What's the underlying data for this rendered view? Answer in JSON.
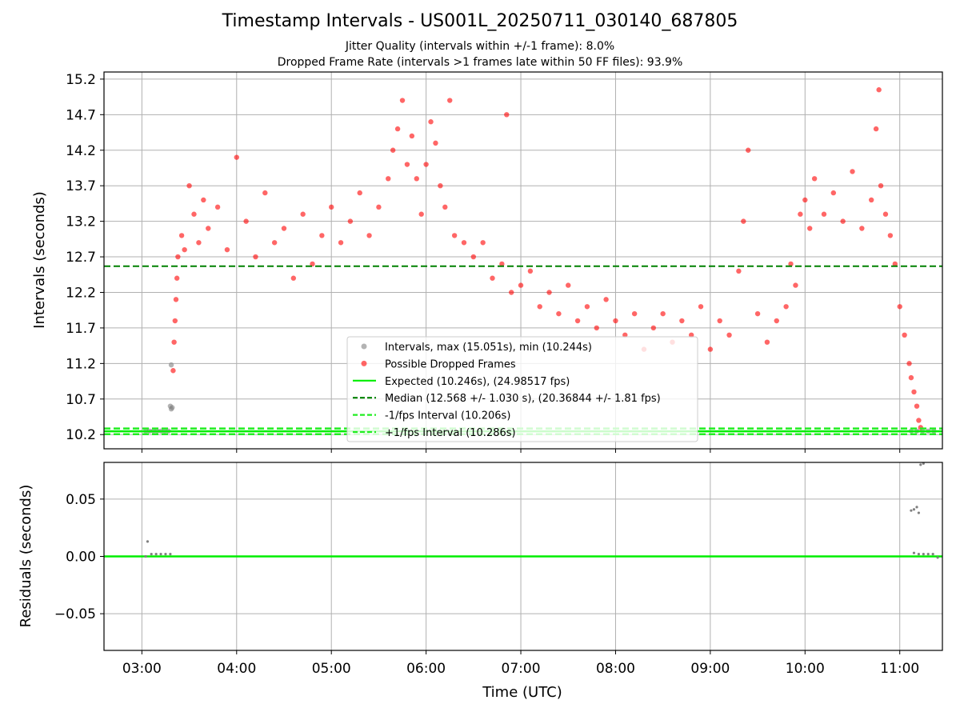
{
  "chart_data": [
    {
      "type": "scatter",
      "title": "Timestamp Intervals - US001L_20250711_030140_687805",
      "subtitle_1": "Jitter Quality (intervals within +/-1 frame): 8.0%",
      "subtitle_2": "Dropped Frame Rate (intervals >1 frames late within 50 FF files): 93.9%",
      "ylabel": "Intervals (seconds)",
      "xlabel": "",
      "xlim_hours": [
        2.6,
        11.45
      ],
      "ylim": [
        10.0,
        15.3
      ],
      "y_ticks": [
        10.2,
        10.7,
        11.2,
        11.7,
        12.2,
        12.7,
        13.2,
        13.7,
        14.2,
        14.7,
        15.2
      ],
      "x_ticks": [
        "03:00",
        "04:00",
        "05:00",
        "06:00",
        "07:00",
        "08:00",
        "09:00",
        "10:00",
        "11:00"
      ],
      "grid": true,
      "legend_location": "lower-center",
      "reference_lines": {
        "expected": 10.246,
        "median": 12.568,
        "minus_fps": 10.206,
        "plus_fps": 10.286
      },
      "series": [
        {
          "name": "Intervals, max (15.051s), min (10.244s)",
          "color": "#808080",
          "points": [
            [
              3.04,
              10.25
            ],
            [
              3.08,
              10.25
            ],
            [
              3.12,
              10.25
            ],
            [
              3.16,
              10.25
            ],
            [
              3.2,
              10.25
            ],
            [
              3.24,
              10.25
            ],
            [
              3.28,
              10.25
            ],
            [
              3.3,
              10.6
            ],
            [
              3.31,
              10.56
            ],
            [
              3.32,
              10.58
            ],
            [
              3.31,
              11.18
            ],
            [
              11.12,
              10.25
            ],
            [
              11.18,
              10.25
            ],
            [
              11.24,
              10.25
            ],
            [
              11.3,
              10.25
            ],
            [
              11.36,
              10.25
            ]
          ]
        },
        {
          "name": "Possible Dropped Frames",
          "color": "#ff0000",
          "points": [
            [
              3.33,
              11.1
            ],
            [
              3.34,
              11.5
            ],
            [
              3.35,
              11.8
            ],
            [
              3.36,
              12.1
            ],
            [
              3.37,
              12.4
            ],
            [
              3.38,
              12.7
            ],
            [
              3.42,
              13.0
            ],
            [
              3.45,
              12.8
            ],
            [
              3.5,
              13.7
            ],
            [
              3.55,
              13.3
            ],
            [
              3.6,
              12.9
            ],
            [
              3.65,
              13.5
            ],
            [
              3.7,
              13.1
            ],
            [
              3.8,
              13.4
            ],
            [
              3.9,
              12.8
            ],
            [
              4.0,
              14.1
            ],
            [
              4.1,
              13.2
            ],
            [
              4.2,
              12.7
            ],
            [
              4.3,
              13.6
            ],
            [
              4.4,
              12.9
            ],
            [
              4.5,
              13.1
            ],
            [
              4.6,
              12.4
            ],
            [
              4.7,
              13.3
            ],
            [
              4.8,
              12.6
            ],
            [
              4.9,
              13.0
            ],
            [
              5.0,
              13.4
            ],
            [
              5.1,
              12.9
            ],
            [
              5.2,
              13.2
            ],
            [
              5.3,
              13.6
            ],
            [
              5.4,
              13.0
            ],
            [
              5.5,
              13.4
            ],
            [
              5.6,
              13.8
            ],
            [
              5.65,
              14.2
            ],
            [
              5.7,
              14.5
            ],
            [
              5.75,
              14.9
            ],
            [
              5.8,
              14.0
            ],
            [
              5.85,
              14.4
            ],
            [
              5.9,
              13.8
            ],
            [
              5.95,
              13.3
            ],
            [
              6.0,
              14.0
            ],
            [
              6.05,
              14.6
            ],
            [
              6.1,
              14.3
            ],
            [
              6.15,
              13.7
            ],
            [
              6.2,
              13.4
            ],
            [
              6.25,
              14.9
            ],
            [
              6.3,
              13.0
            ],
            [
              6.4,
              12.9
            ],
            [
              6.5,
              12.7
            ],
            [
              6.6,
              12.9
            ],
            [
              6.7,
              12.4
            ],
            [
              6.8,
              12.6
            ],
            [
              6.85,
              14.7
            ],
            [
              6.9,
              12.2
            ],
            [
              7.0,
              12.3
            ],
            [
              7.1,
              12.5
            ],
            [
              7.2,
              12.0
            ],
            [
              7.3,
              12.2
            ],
            [
              7.4,
              11.9
            ],
            [
              7.5,
              12.3
            ],
            [
              7.6,
              11.8
            ],
            [
              7.7,
              12.0
            ],
            [
              7.8,
              11.7
            ],
            [
              7.9,
              12.1
            ],
            [
              8.0,
              11.8
            ],
            [
              8.1,
              11.6
            ],
            [
              8.2,
              11.9
            ],
            [
              8.3,
              11.4
            ],
            [
              8.4,
              11.7
            ],
            [
              8.5,
              11.9
            ],
            [
              8.6,
              11.5
            ],
            [
              8.7,
              11.8
            ],
            [
              8.8,
              11.6
            ],
            [
              8.9,
              12.0
            ],
            [
              9.0,
              11.4
            ],
            [
              9.1,
              11.8
            ],
            [
              9.2,
              11.6
            ],
            [
              9.3,
              12.5
            ],
            [
              9.35,
              13.2
            ],
            [
              9.4,
              14.2
            ],
            [
              9.5,
              11.9
            ],
            [
              9.6,
              11.5
            ],
            [
              9.7,
              11.8
            ],
            [
              9.8,
              12.0
            ],
            [
              9.85,
              12.6
            ],
            [
              9.9,
              12.3
            ],
            [
              9.95,
              13.3
            ],
            [
              10.0,
              13.5
            ],
            [
              10.05,
              13.1
            ],
            [
              10.1,
              13.8
            ],
            [
              10.2,
              13.3
            ],
            [
              10.3,
              13.6
            ],
            [
              10.4,
              13.2
            ],
            [
              10.5,
              13.9
            ],
            [
              10.6,
              13.1
            ],
            [
              10.7,
              13.5
            ],
            [
              10.75,
              14.5
            ],
            [
              10.8,
              13.7
            ],
            [
              10.85,
              13.3
            ],
            [
              10.9,
              13.0
            ],
            [
              10.95,
              12.6
            ],
            [
              11.0,
              12.0
            ],
            [
              11.05,
              11.6
            ],
            [
              11.1,
              11.2
            ],
            [
              11.12,
              11.0
            ],
            [
              11.15,
              10.8
            ],
            [
              11.18,
              10.6
            ],
            [
              11.2,
              10.4
            ],
            [
              11.22,
              10.3
            ],
            [
              10.78,
              15.05
            ]
          ]
        }
      ],
      "legend": [
        {
          "label": "Intervals, max (15.051s), min (10.244s)",
          "kind": "marker",
          "color": "#808080"
        },
        {
          "label": "Possible Dropped Frames",
          "kind": "marker",
          "color": "#ff0000"
        },
        {
          "label": "Expected (10.246s), (24.98517 fps)",
          "kind": "solid",
          "color": "#00ee00"
        },
        {
          "label": "Median (12.568 +/- 1.030 s), (20.36844 +/- 1.81 fps)",
          "kind": "dashed",
          "color": "#008000"
        },
        {
          "label": "-1/fps Interval (10.206s)",
          "kind": "dashed",
          "color": "#22ee22"
        },
        {
          "label": "+1/fps Interval (10.286s)",
          "kind": "dashed",
          "color": "#22ee22"
        }
      ]
    },
    {
      "type": "scatter",
      "title": "",
      "ylabel": "Residuals (seconds)",
      "xlabel": "Time (UTC)",
      "xlim_hours": [
        2.6,
        11.45
      ],
      "ylim": [
        -0.082,
        0.082
      ],
      "y_ticks": [
        0.05,
        0.0,
        -0.05
      ],
      "y_tick_labels": [
        "0.05",
        "0.00",
        "−0.05"
      ],
      "x_ticks": [
        "03:00",
        "04:00",
        "05:00",
        "06:00",
        "07:00",
        "08:00",
        "09:00",
        "10:00",
        "11:00"
      ],
      "grid": true,
      "zero_line_color": "#00ee00",
      "series": [
        {
          "name": "",
          "color": "#808080",
          "points": [
            [
              3.04,
              0.0
            ],
            [
              3.06,
              0.013
            ],
            [
              3.1,
              0.002
            ],
            [
              3.15,
              0.002
            ],
            [
              3.2,
              0.002
            ],
            [
              3.25,
              0.002
            ],
            [
              3.3,
              0.002
            ],
            [
              11.12,
              0.04
            ],
            [
              11.15,
              0.041
            ],
            [
              11.18,
              0.043
            ],
            [
              11.2,
              0.038
            ],
            [
              11.22,
              0.08
            ],
            [
              11.25,
              0.081
            ],
            [
              11.15,
              0.003
            ],
            [
              11.2,
              0.002
            ],
            [
              11.25,
              0.002
            ],
            [
              11.3,
              0.002
            ],
            [
              11.35,
              0.002
            ],
            [
              11.4,
              -0.001
            ]
          ]
        }
      ]
    }
  ]
}
